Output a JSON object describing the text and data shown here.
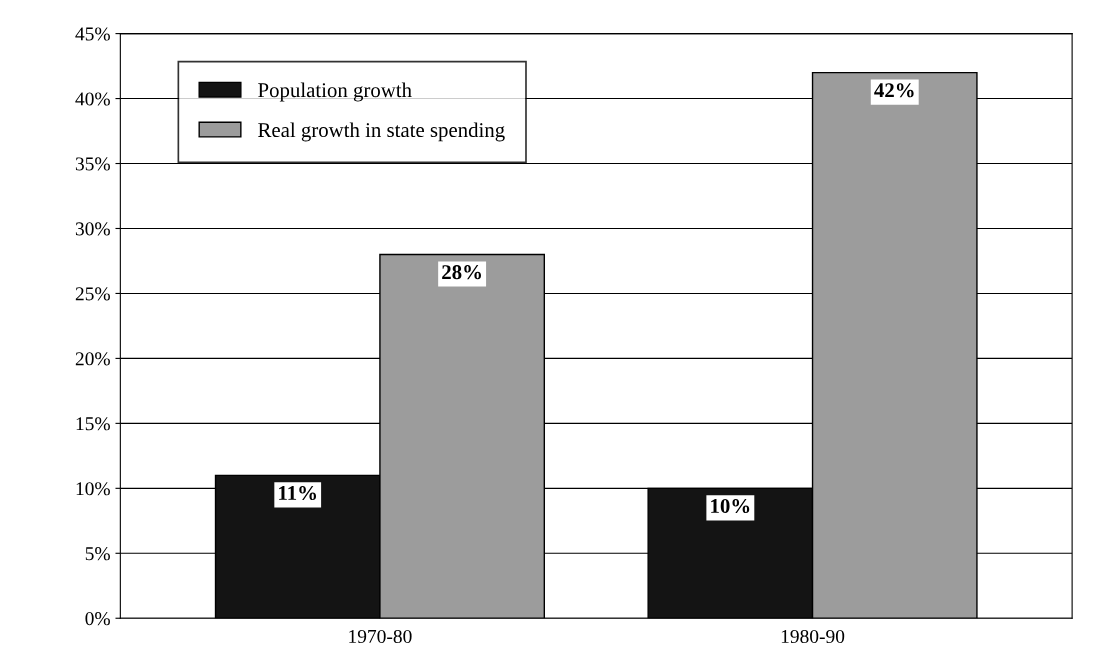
{
  "chart_data": {
    "type": "bar",
    "categories": [
      "1970-80",
      "1980-90"
    ],
    "series": [
      {
        "name": "Population growth",
        "color": "#141414",
        "values": [
          11,
          10
        ],
        "value_labels": [
          "11%",
          "10%"
        ]
      },
      {
        "name": "Real growth in state spending",
        "color": "#9c9c9c",
        "values": [
          28,
          42
        ],
        "value_labels": [
          "28%",
          "42%"
        ]
      }
    ],
    "ylim": [
      0,
      45
    ],
    "yticks": [
      {
        "value": 0,
        "label": "0%"
      },
      {
        "value": 5,
        "label": "5%"
      },
      {
        "value": 10,
        "label": "10%"
      },
      {
        "value": 15,
        "label": "15%"
      },
      {
        "value": 20,
        "label": "20%"
      },
      {
        "value": 25,
        "label": "25%"
      },
      {
        "value": 30,
        "label": "30%"
      },
      {
        "value": 35,
        "label": "35%"
      },
      {
        "value": 40,
        "label": "40%"
      },
      {
        "value": 45,
        "label": "45%"
      }
    ],
    "grid": "y",
    "legend": "top left"
  }
}
